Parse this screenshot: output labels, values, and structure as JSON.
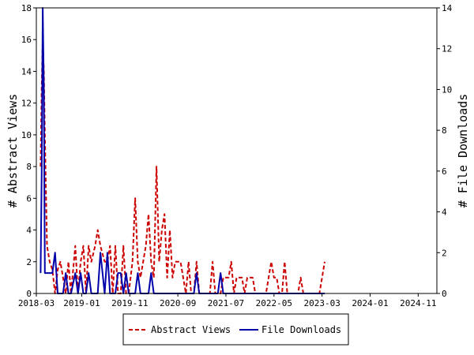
{
  "chart_data": {
    "type": "line",
    "x_tick_labels": [
      "2018-03",
      "2019-01",
      "2019-11",
      "2020-09",
      "2021-07",
      "2022-05",
      "2023-03",
      "2024-01",
      "2024-11"
    ],
    "ylabel_left": "# Abstract Views",
    "ylabel_right": "# File Downloads",
    "ylim_left": [
      0,
      18
    ],
    "ylim_right": [
      0,
      14
    ],
    "yticks_left": [
      0,
      2,
      4,
      6,
      8,
      10,
      12,
      14,
      16,
      18
    ],
    "yticks_right": [
      0,
      2,
      4,
      6,
      8,
      10,
      12,
      14
    ],
    "legend_position": "bottom-center",
    "grid": false,
    "series": [
      {
        "name": "Abstract Views",
        "axis": "left",
        "color": "#cc0000",
        "style": "dashed",
        "values": [
          [
            2018.08,
            8
          ],
          [
            2018.1,
            13
          ],
          [
            2018.12,
            16
          ],
          [
            2018.14,
            14
          ],
          [
            2018.16,
            10
          ],
          [
            2018.2,
            3
          ],
          [
            2018.25,
            2
          ],
          [
            2018.3,
            1.5
          ],
          [
            2018.35,
            0
          ],
          [
            2018.4,
            1.5
          ],
          [
            2018.45,
            2
          ],
          [
            2018.5,
            1
          ],
          [
            2018.55,
            0
          ],
          [
            2018.6,
            2
          ],
          [
            2018.65,
            0
          ],
          [
            2018.73,
            3
          ],
          [
            2018.78,
            0
          ],
          [
            2018.83,
            2
          ],
          [
            2018.88,
            3
          ],
          [
            2018.93,
            0
          ],
          [
            2018.98,
            3
          ],
          [
            2019.03,
            2
          ],
          [
            2019.1,
            3
          ],
          [
            2019.15,
            4
          ],
          [
            2019.2,
            3
          ],
          [
            2019.28,
            2
          ],
          [
            2019.33,
            2
          ],
          [
            2019.38,
            3
          ],
          [
            2019.43,
            0
          ],
          [
            2019.48,
            3
          ],
          [
            2019.53,
            0
          ],
          [
            2019.58,
            0
          ],
          [
            2019.63,
            3
          ],
          [
            2019.68,
            0
          ],
          [
            2019.73,
            0
          ],
          [
            2019.8,
            2
          ],
          [
            2019.85,
            6
          ],
          [
            2019.9,
            2
          ],
          [
            2019.95,
            1
          ],
          [
            2020.0,
            2
          ],
          [
            2020.05,
            3
          ],
          [
            2020.1,
            5
          ],
          [
            2020.15,
            2
          ],
          [
            2020.2,
            1
          ],
          [
            2020.25,
            8
          ],
          [
            2020.3,
            2
          ],
          [
            2020.35,
            4
          ],
          [
            2020.4,
            5
          ],
          [
            2020.45,
            1
          ],
          [
            2020.5,
            4
          ],
          [
            2020.55,
            1
          ],
          [
            2020.6,
            2
          ],
          [
            2020.65,
            2
          ],
          [
            2020.7,
            2
          ],
          [
            2020.75,
            1
          ],
          [
            2020.8,
            0
          ],
          [
            2020.85,
            2
          ],
          [
            2020.9,
            0
          ],
          [
            2020.95,
            0
          ],
          [
            2021.0,
            2
          ],
          [
            2021.05,
            0
          ],
          [
            2021.1,
            0
          ],
          [
            2021.15,
            0
          ],
          [
            2021.2,
            0
          ],
          [
            2021.25,
            0
          ],
          [
            2021.3,
            2
          ],
          [
            2021.35,
            0
          ],
          [
            2021.4,
            0
          ],
          [
            2021.45,
            0
          ],
          [
            2021.5,
            1
          ],
          [
            2021.55,
            1
          ],
          [
            2021.6,
            1
          ],
          [
            2021.65,
            2
          ],
          [
            2021.7,
            0
          ],
          [
            2021.75,
            1
          ],
          [
            2021.8,
            1
          ],
          [
            2021.85,
            1
          ],
          [
            2021.9,
            0
          ],
          [
            2021.95,
            1
          ],
          [
            2022.0,
            1
          ],
          [
            2022.05,
            1
          ],
          [
            2022.1,
            0
          ],
          [
            2022.15,
            0
          ],
          [
            2022.2,
            0
          ],
          [
            2022.25,
            0
          ],
          [
            2022.3,
            0
          ],
          [
            2022.4,
            2
          ],
          [
            2022.45,
            1
          ],
          [
            2022.5,
            1
          ],
          [
            2022.55,
            0
          ],
          [
            2022.6,
            0
          ],
          [
            2022.65,
            2
          ],
          [
            2022.7,
            0
          ],
          [
            2022.75,
            0
          ],
          [
            2022.8,
            0
          ],
          [
            2022.85,
            0
          ],
          [
            2022.9,
            0
          ],
          [
            2022.95,
            1
          ],
          [
            2023.0,
            0
          ],
          [
            2023.05,
            0
          ],
          [
            2023.1,
            0
          ],
          [
            2023.15,
            0
          ],
          [
            2023.2,
            0
          ],
          [
            2023.25,
            0
          ],
          [
            2023.3,
            0
          ],
          [
            2023.35,
            1
          ],
          [
            2023.4,
            2
          ]
        ]
      },
      {
        "name": "File Downloads",
        "axis": "right",
        "color": "#0000aa",
        "style": "solid",
        "values": [
          [
            2018.08,
            1
          ],
          [
            2018.1,
            6
          ],
          [
            2018.12,
            14
          ],
          [
            2018.14,
            10
          ],
          [
            2018.16,
            1
          ],
          [
            2018.2,
            1
          ],
          [
            2018.25,
            1
          ],
          [
            2018.3,
            1
          ],
          [
            2018.35,
            2
          ],
          [
            2018.4,
            0
          ],
          [
            2018.45,
            0
          ],
          [
            2018.5,
            0
          ],
          [
            2018.55,
            1
          ],
          [
            2018.6,
            0
          ],
          [
            2018.65,
            0
          ],
          [
            2018.73,
            1
          ],
          [
            2018.78,
            0
          ],
          [
            2018.83,
            1
          ],
          [
            2018.88,
            0
          ],
          [
            2018.93,
            0
          ],
          [
            2018.98,
            1
          ],
          [
            2019.03,
            0
          ],
          [
            2019.1,
            0
          ],
          [
            2019.15,
            0
          ],
          [
            2019.2,
            2
          ],
          [
            2019.28,
            0
          ],
          [
            2019.33,
            2
          ],
          [
            2019.38,
            0
          ],
          [
            2019.43,
            0
          ],
          [
            2019.48,
            0
          ],
          [
            2019.53,
            1
          ],
          [
            2019.58,
            1
          ],
          [
            2019.63,
            0
          ],
          [
            2019.68,
            1
          ],
          [
            2019.73,
            0
          ],
          [
            2019.8,
            0
          ],
          [
            2019.85,
            0
          ],
          [
            2019.9,
            1
          ],
          [
            2019.95,
            0
          ],
          [
            2020.0,
            0
          ],
          [
            2020.05,
            0
          ],
          [
            2020.1,
            0
          ],
          [
            2020.15,
            1
          ],
          [
            2020.2,
            0
          ],
          [
            2020.25,
            0
          ],
          [
            2020.3,
            0
          ],
          [
            2020.35,
            0
          ],
          [
            2020.4,
            0
          ],
          [
            2020.45,
            0
          ],
          [
            2020.5,
            0
          ],
          [
            2020.55,
            0
          ],
          [
            2020.6,
            0
          ],
          [
            2020.65,
            0
          ],
          [
            2020.7,
            0
          ],
          [
            2020.75,
            0
          ],
          [
            2020.8,
            0
          ],
          [
            2020.85,
            0
          ],
          [
            2020.9,
            0
          ],
          [
            2020.95,
            0
          ],
          [
            2021.0,
            1
          ],
          [
            2021.05,
            0
          ],
          [
            2021.1,
            0
          ],
          [
            2021.15,
            0
          ],
          [
            2021.2,
            0
          ],
          [
            2021.25,
            0
          ],
          [
            2021.3,
            0
          ],
          [
            2021.35,
            0
          ],
          [
            2021.4,
            0
          ],
          [
            2021.45,
            1
          ],
          [
            2021.5,
            0
          ],
          [
            2021.55,
            0
          ],
          [
            2021.6,
            0
          ],
          [
            2021.65,
            0
          ],
          [
            2021.7,
            0
          ],
          [
            2021.75,
            0
          ],
          [
            2021.8,
            0
          ],
          [
            2021.85,
            0
          ],
          [
            2021.9,
            0
          ],
          [
            2021.95,
            0
          ],
          [
            2022.0,
            0
          ],
          [
            2022.05,
            0
          ],
          [
            2022.1,
            0
          ],
          [
            2022.15,
            0
          ],
          [
            2022.2,
            0
          ],
          [
            2022.25,
            0
          ],
          [
            2022.3,
            0
          ],
          [
            2022.4,
            0
          ],
          [
            2022.45,
            0
          ],
          [
            2022.5,
            0
          ],
          [
            2022.55,
            0
          ],
          [
            2022.6,
            0
          ],
          [
            2022.65,
            0
          ],
          [
            2022.7,
            0
          ],
          [
            2022.75,
            0
          ],
          [
            2022.8,
            0
          ],
          [
            2022.85,
            0
          ],
          [
            2022.9,
            0
          ],
          [
            2022.95,
            0
          ],
          [
            2023.0,
            0
          ],
          [
            2023.05,
            0
          ],
          [
            2023.1,
            0
          ],
          [
            2023.15,
            0
          ],
          [
            2023.2,
            0
          ],
          [
            2023.25,
            0
          ],
          [
            2023.3,
            0
          ],
          [
            2023.35,
            0
          ],
          [
            2023.4,
            0
          ]
        ]
      }
    ]
  },
  "legend": {
    "views_label": "Abstract Views",
    "downloads_label": "File Downloads"
  }
}
